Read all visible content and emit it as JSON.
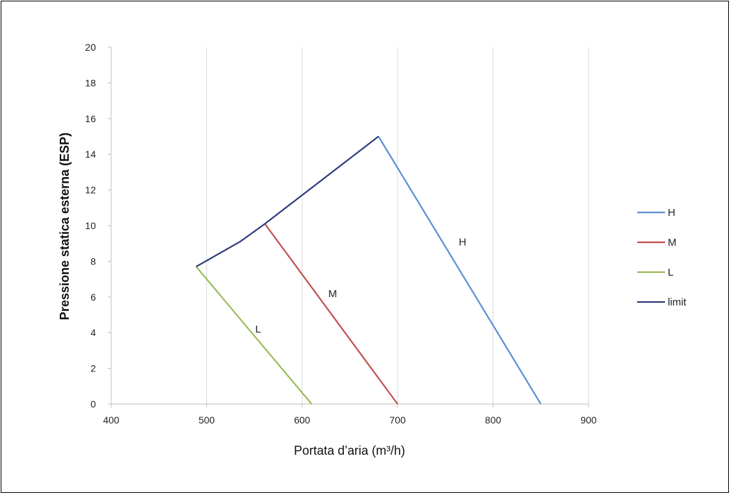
{
  "chart_data": {
    "type": "line",
    "xlabel": "Portata d’aria (m³/h)",
    "ylabel": "Pressione statica esterna (ESP)",
    "xlim": [
      400,
      900
    ],
    "ylim": [
      0,
      20
    ],
    "xticks": [
      400,
      500,
      600,
      700,
      800,
      900
    ],
    "yticks": [
      0,
      2,
      4,
      6,
      8,
      10,
      12,
      14,
      16,
      18,
      20
    ],
    "grid": "vertical",
    "legend_position": "right",
    "series": [
      {
        "name": "H",
        "color": "#5b8fd0",
        "label": "H",
        "label_at": [
          768,
          8.9
        ],
        "points": [
          [
            680,
            15
          ],
          [
            850,
            0
          ]
        ]
      },
      {
        "name": "M",
        "color": "#c0504d",
        "label": "M",
        "label_at": [
          632,
          6.0
        ],
        "points": [
          [
            561,
            10.1
          ],
          [
            700,
            0
          ]
        ]
      },
      {
        "name": "L",
        "color": "#9bbb59",
        "label": "L",
        "label_at": [
          554,
          4.0
        ],
        "points": [
          [
            489,
            7.7
          ],
          [
            610,
            0
          ]
        ]
      },
      {
        "name": "limit",
        "color": "#2e3a7a",
        "label": "",
        "label_at": null,
        "points": [
          [
            489,
            7.7
          ],
          [
            535,
            9.1
          ],
          [
            561,
            10.1
          ],
          [
            680,
            15
          ]
        ]
      }
    ]
  }
}
